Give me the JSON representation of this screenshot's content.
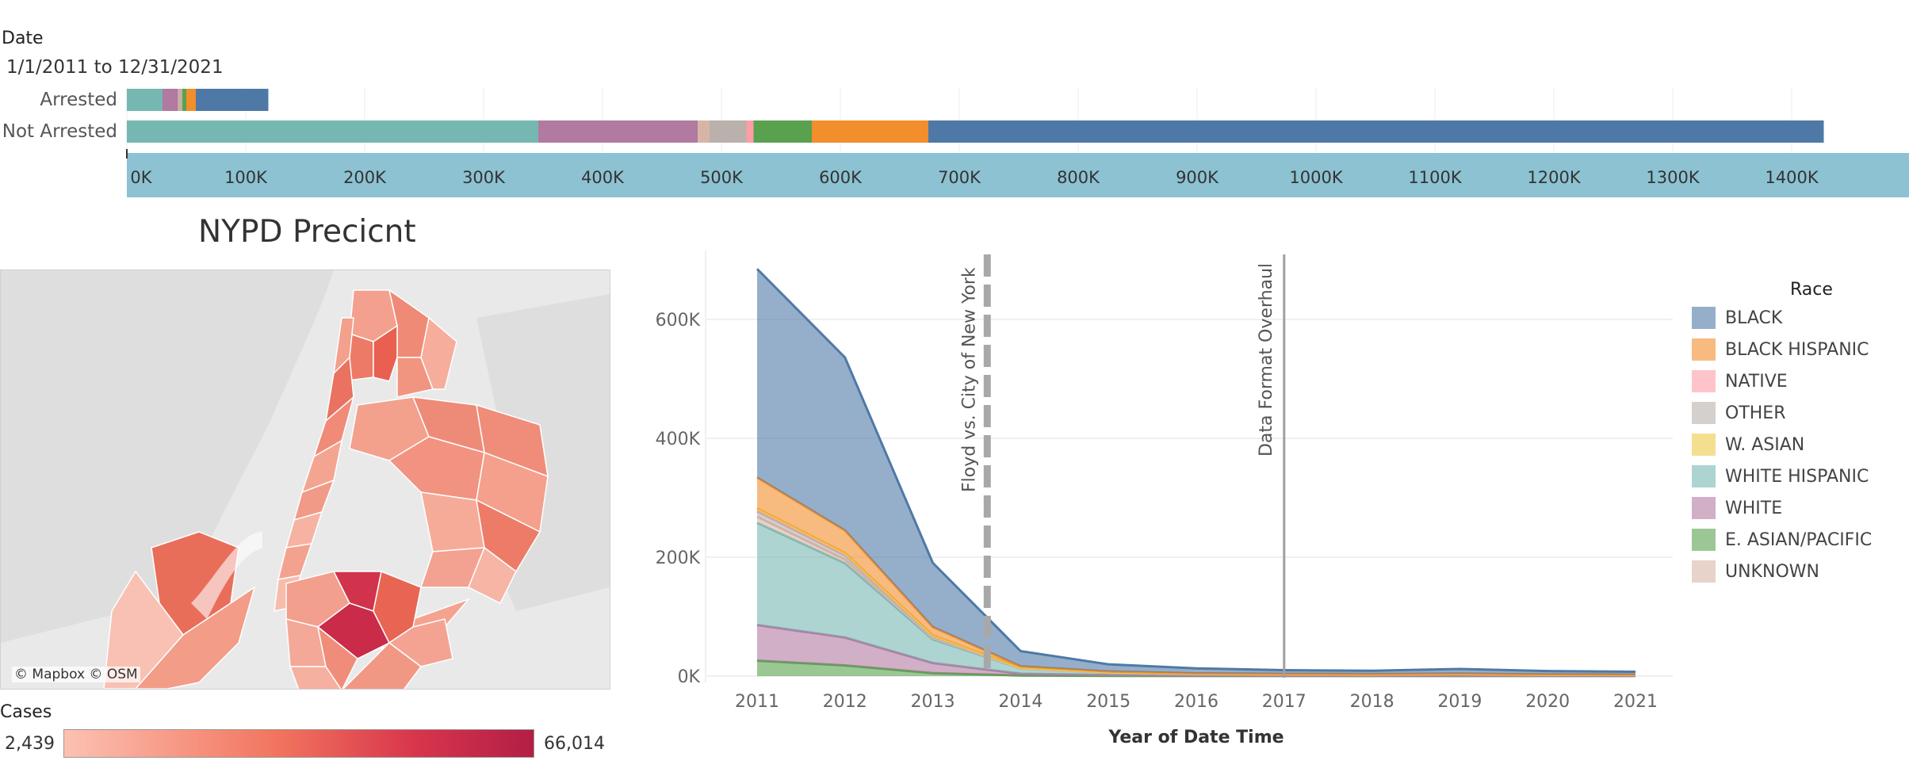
{
  "filter": {
    "title": "Date",
    "value": "1/1/2011 to 12/31/2021"
  },
  "colors": {
    "BLACK": "#4e79a7",
    "BLACK HISPANIC": "#f28e2b",
    "NATIVE": "#ff9da7",
    "OTHER": "#bab0ac",
    "W. ASIAN": "#edc948",
    "WHITE HISPANIC": "#76b7b2",
    "WHITE": "#b07aa1",
    "E. ASIAN/PACIFIC": "#59a14f",
    "UNKNOWN": "#d7b5a6"
  },
  "chart_data": [
    {
      "type": "bar",
      "orientation": "horizontal",
      "stacked": true,
      "categories": [
        "Arrested",
        "Not Arrested"
      ],
      "xlim": [
        0,
        1500000
      ],
      "x_ticks": [
        "0K",
        "100K",
        "200K",
        "300K",
        "400K",
        "500K",
        "600K",
        "700K",
        "800K",
        "900K",
        "1000K",
        "1100K",
        "1200K",
        "1300K",
        "1400K"
      ],
      "series": [
        {
          "name": "WHITE HISPANIC",
          "values": [
            30000,
            346000
          ]
        },
        {
          "name": "WHITE",
          "values": [
            13000,
            134000
          ]
        },
        {
          "name": "UNKNOWN",
          "values": [
            1000,
            10000
          ]
        },
        {
          "name": "OTHER",
          "values": [
            2000,
            31000
          ]
        },
        {
          "name": "NATIVE",
          "values": [
            500,
            6000
          ]
        },
        {
          "name": "E. ASIAN/PACIFIC",
          "values": [
            3500,
            49000
          ]
        },
        {
          "name": "BLACK HISPANIC",
          "values": [
            8000,
            98000
          ]
        },
        {
          "name": "BLACK",
          "values": [
            61000,
            753000
          ]
        }
      ]
    },
    {
      "type": "area",
      "stacked": true,
      "x": [
        "2011",
        "2012",
        "2013",
        "2014",
        "2015",
        "2016",
        "2017",
        "2018",
        "2019",
        "2020",
        "2021"
      ],
      "xlabel": "Year of Date Time",
      "ylim": [
        0,
        720000
      ],
      "y_ticks": [
        "0K",
        "200K",
        "400K",
        "600K"
      ],
      "y_tick_values": [
        0,
        200000,
        400000,
        600000
      ],
      "series": [
        {
          "name": "E. ASIAN/PACIFIC",
          "values": [
            26000,
            18000,
            5000,
            1000,
            400,
            200,
            150,
            120,
            150,
            100,
            90
          ]
        },
        {
          "name": "WHITE",
          "values": [
            60000,
            47000,
            17000,
            3000,
            1500,
            800,
            700,
            600,
            700,
            500,
            400
          ]
        },
        {
          "name": "WHITE HISPANIC",
          "values": [
            172000,
            125000,
            40000,
            9000,
            4000,
            2500,
            2000,
            1800,
            2500,
            1500,
            1300
          ]
        },
        {
          "name": "UNKNOWN",
          "values": [
            10000,
            6000,
            2000,
            200,
            100,
            50,
            50,
            50,
            50,
            50,
            50
          ]
        },
        {
          "name": "OTHER",
          "values": [
            9000,
            7000,
            3000,
            500,
            200,
            150,
            100,
            100,
            100,
            80,
            80
          ]
        },
        {
          "name": "NATIVE",
          "values": [
            4000,
            3000,
            1000,
            200,
            100,
            50,
            50,
            50,
            50,
            50,
            50
          ]
        },
        {
          "name": "W. ASIAN",
          "values": [
            1000,
            1000,
            500,
            100,
            50,
            50,
            50,
            50,
            50,
            50,
            50
          ]
        },
        {
          "name": "BLACK HISPANIC",
          "values": [
            52000,
            38000,
            14000,
            2500,
            1500,
            900,
            800,
            700,
            800,
            600,
            500
          ]
        },
        {
          "name": "BLACK",
          "values": [
            351000,
            291000,
            108000,
            25500,
            12000,
            8300,
            6100,
            5500,
            7600,
            5600,
            4800
          ]
        }
      ],
      "annotations": [
        {
          "label": "Floyd vs. City of New York",
          "x": 2013.62,
          "style": "dashed"
        },
        {
          "label": "Data Format Overhaul",
          "x": 2017,
          "style": "solid"
        }
      ]
    }
  ],
  "map": {
    "title": "NYPD Precicnt",
    "credit": "© Mapbox © OSM",
    "legend_title": "Cases",
    "legend_min": "2,439",
    "legend_max": "66,014"
  },
  "legend": {
    "title": "Race",
    "items": [
      "BLACK",
      "BLACK HISPANIC",
      "NATIVE",
      "OTHER",
      "W. ASIAN",
      "WHITE HISPANIC",
      "WHITE",
      "E. ASIAN/PACIFIC",
      "UNKNOWN"
    ]
  }
}
